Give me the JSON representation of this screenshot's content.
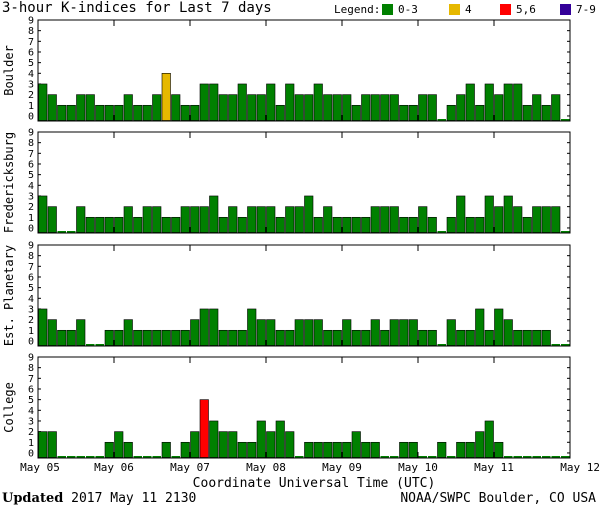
{
  "chart_data": {
    "type": "bar",
    "title": "3-hour K-indices for Last 7 days",
    "legend": {
      "label": "Legend:",
      "entries": [
        {
          "label": "0-3",
          "color": "#008000"
        },
        {
          "label": "4",
          "color": "#e6b800"
        },
        {
          "label": "5,6",
          "color": "#ff0000"
        },
        {
          "label": "7-9",
          "color": "#330099"
        }
      ]
    },
    "xlabel": "Coordinate Universal Time (UTC)",
    "x_ticks": [
      "May 05",
      "May 06",
      "May 07",
      "May 08",
      "May 09",
      "May 10",
      "May 11",
      "May 12"
    ],
    "intervals_per_day": 8,
    "ylim": [
      0,
      9
    ],
    "y_ticks": [
      0,
      1,
      2,
      3,
      4,
      5,
      6,
      7,
      8,
      9
    ],
    "series": [
      {
        "name": "Boulder",
        "values": [
          3,
          2,
          1,
          1,
          2,
          2,
          1,
          1,
          1,
          2,
          1,
          1,
          2,
          4,
          2,
          1,
          1,
          3,
          3,
          2,
          2,
          3,
          2,
          2,
          3,
          1,
          3,
          2,
          2,
          3,
          2,
          2,
          2,
          1,
          2,
          2,
          2,
          2,
          1,
          1,
          2,
          2,
          0,
          1,
          2,
          3,
          1,
          3,
          2,
          3,
          3,
          1,
          2,
          1,
          2,
          0
        ]
      },
      {
        "name": "Fredericksburg",
        "values": [
          3,
          2,
          0,
          0,
          2,
          1,
          1,
          1,
          1,
          2,
          1,
          2,
          2,
          1,
          1,
          2,
          2,
          2,
          3,
          1,
          2,
          1,
          2,
          2,
          2,
          1,
          2,
          2,
          3,
          1,
          2,
          1,
          1,
          1,
          1,
          2,
          2,
          2,
          1,
          1,
          2,
          1,
          0,
          1,
          3,
          1,
          1,
          3,
          2,
          3,
          2,
          1,
          2,
          2,
          2,
          0
        ]
      },
      {
        "name": "Est. Planetary",
        "values": [
          3,
          2,
          1,
          1,
          2,
          0,
          0,
          1,
          1,
          2,
          1,
          1,
          1,
          1,
          1,
          1,
          2,
          3,
          3,
          1,
          1,
          1,
          3,
          2,
          2,
          1,
          1,
          2,
          2,
          2,
          1,
          1,
          2,
          1,
          1,
          2,
          1,
          2,
          2,
          2,
          1,
          1,
          0,
          2,
          1,
          1,
          3,
          1,
          3,
          2,
          1,
          1,
          1,
          1,
          0,
          0
        ]
      },
      {
        "name": "College",
        "values": [
          2,
          2,
          0,
          0,
          0,
          0,
          0,
          1,
          2,
          1,
          0,
          0,
          0,
          1,
          0,
          1,
          2,
          5,
          3,
          2,
          2,
          1,
          1,
          3,
          2,
          3,
          2,
          0,
          1,
          1,
          1,
          1,
          1,
          2,
          1,
          1,
          0,
          0,
          1,
          1,
          0,
          0,
          1,
          0,
          1,
          1,
          2,
          3,
          1,
          0,
          0,
          0,
          0,
          0,
          0,
          0
        ]
      }
    ]
  },
  "footer": {
    "updated_label": "Updated",
    "updated_time": "2017 May 11 2130",
    "source": "NOAA/SWPC Boulder, CO USA"
  }
}
